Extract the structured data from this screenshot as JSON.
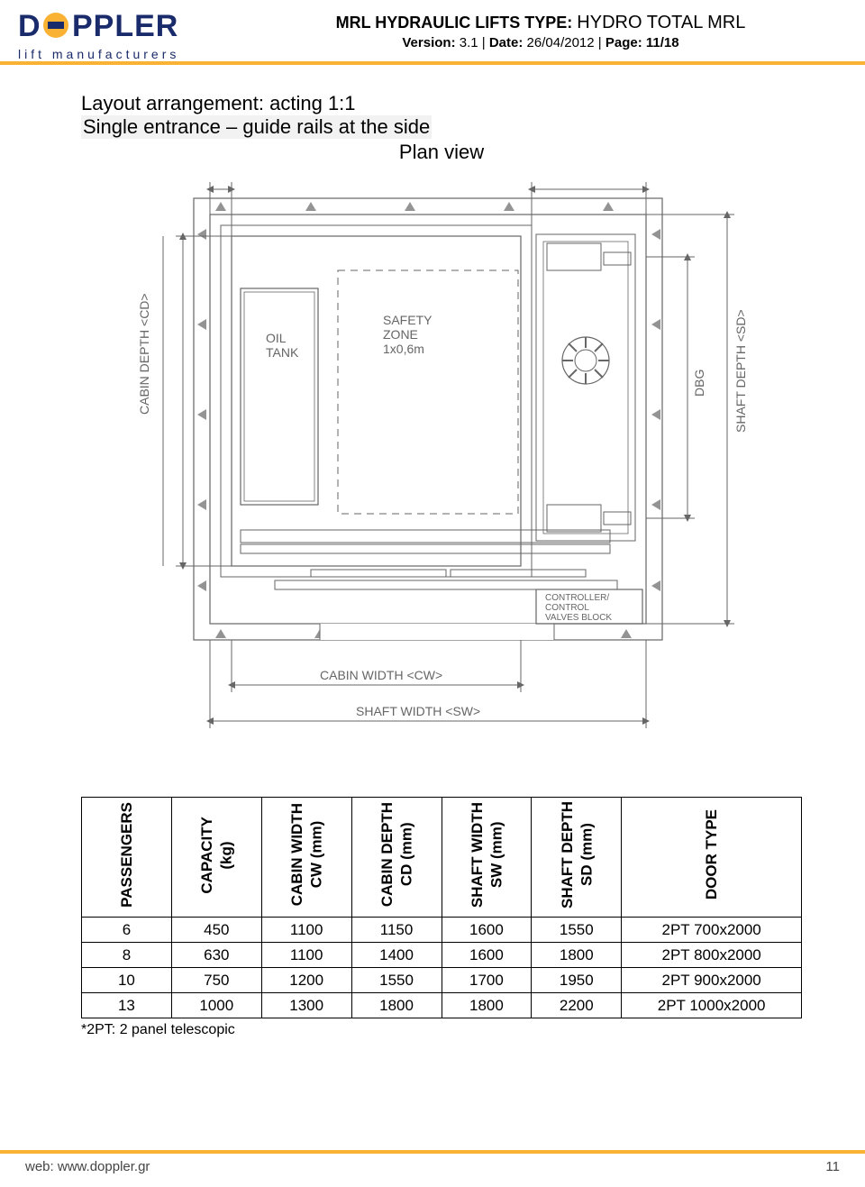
{
  "header": {
    "logo_sub": "lift manufacturers",
    "title_prefix": "MRL HYDRAULIC LIFTS TYPE: ",
    "title_value": "HYDRO TOTAL MRL",
    "version_label": "Version:",
    "version_value": "3.1",
    "date_label": "Date:",
    "date_value": "26/04/2012",
    "page_label": "Page:",
    "page_value": "11/18"
  },
  "layout": {
    "line1": "Layout arrangement: acting 1:1",
    "line2": "Single entrance – guide rails at the side",
    "line3": "Plan view"
  },
  "diagram_labels": {
    "oil_tank": "OIL\nTANK",
    "safety_zone": "SAFETY\nZONE\n1x0,6m",
    "controller": "CONTROLLER/\nCONTROL\nVALVES BLOCK",
    "cabin_width": "CABIN  WIDTH  <CW>",
    "shaft_width": "SHAFT  WIDTH  <SW>",
    "cabin_depth": "CABIN  DEPTH  <CD>",
    "shaft_depth": "SHAFT  DEPTH  <SD>",
    "dbg": "DBG"
  },
  "table": {
    "columns": [
      {
        "line1": "PASSENGERS",
        "line2": ""
      },
      {
        "line1": "CAPACITY",
        "line2": "(kg)"
      },
      {
        "line1": "CABIN WIDTH",
        "line2": "CW (mm)"
      },
      {
        "line1": "CABIN DEPTH",
        "line2": "CD (mm)"
      },
      {
        "line1": "SHAFT WIDTH",
        "line2": "SW (mm)"
      },
      {
        "line1": "SHAFT DEPTH",
        "line2": "SD (mm)"
      },
      {
        "line1": "DOOR TYPE",
        "line2": ""
      }
    ],
    "col_widths_pct": [
      12.5,
      12.5,
      12.5,
      12.5,
      12.5,
      12.5,
      25
    ],
    "rows": [
      [
        "6",
        "450",
        "1100",
        "1150",
        "1600",
        "1550",
        "2PT 700x2000"
      ],
      [
        "8",
        "630",
        "1100",
        "1400",
        "1600",
        "1800",
        "2PT 800x2000"
      ],
      [
        "10",
        "750",
        "1200",
        "1550",
        "1700",
        "1950",
        "2PT 900x2000"
      ],
      [
        "13",
        "1000",
        "1300",
        "1800",
        "1800",
        "2200",
        "2PT 1000x2000"
      ]
    ],
    "footnote": "*2PT: 2 panel telescopic"
  },
  "footer": {
    "web_label": "web:",
    "web_value": "www.doppler.gr",
    "page_no": "11"
  },
  "colors": {
    "brand_blue": "#1a2b6b",
    "brand_orange": "#f9b233",
    "line": "#666666",
    "wall": "#999999"
  }
}
